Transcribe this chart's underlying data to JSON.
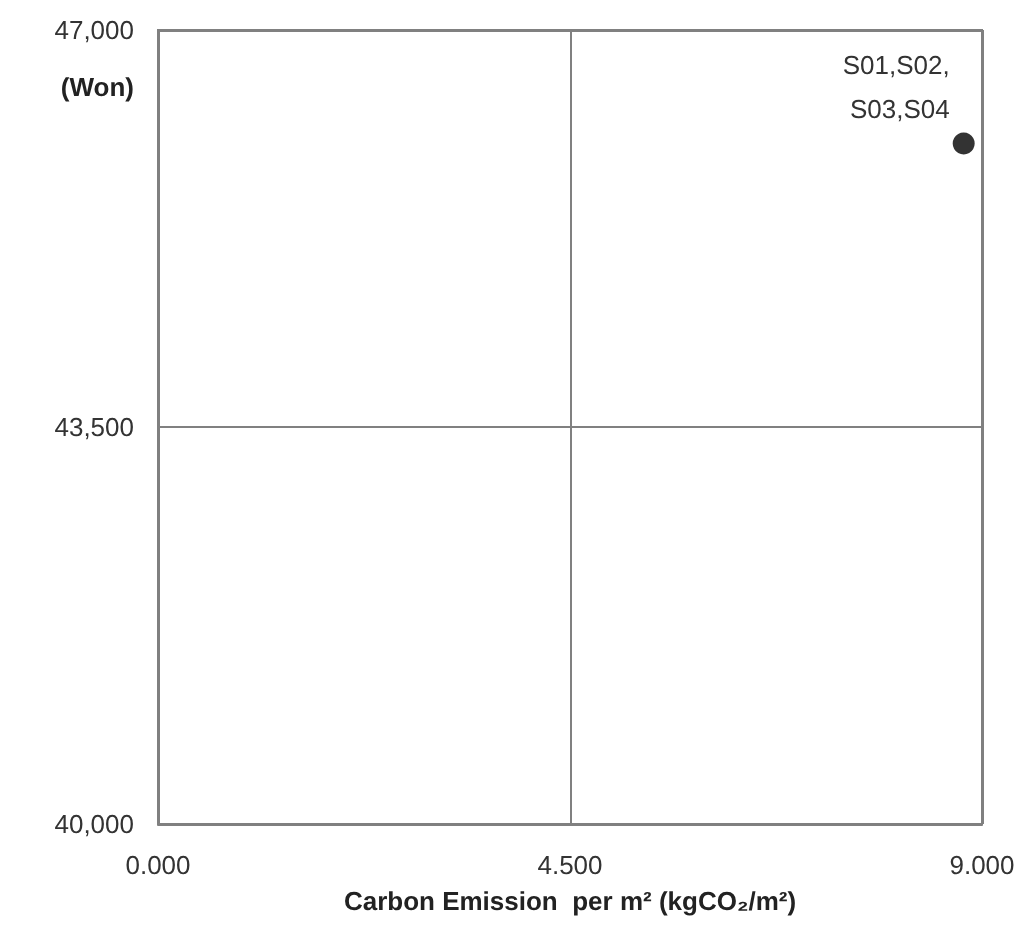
{
  "chart_data": {
    "type": "scatter",
    "xlabel": "Carbon Emission  per m² (kgCO₂/m²)",
    "ylabel": "(Won)",
    "x": [
      8.8
    ],
    "series": [
      {
        "color": "#000000",
        "values": [
          46000
        ]
      }
    ],
    "xlim": [
      0,
      9
    ],
    "xticks": [
      {
        "value": 0,
        "label": "0.000"
      },
      {
        "value": 4.5,
        "label": "4.500"
      },
      {
        "value": 9,
        "label": "9.000"
      }
    ],
    "ylim": [
      40000,
      47000
    ],
    "yticks": [
      {
        "value": 40000,
        "label": "40,000"
      },
      {
        "value": 43500,
        "label": "43,500"
      },
      {
        "value": 47000,
        "label": "47,000"
      }
    ],
    "annotations": [
      {
        "text": "S01,S02,\nS03,S04",
        "x": 8.8,
        "y": 46000
      }
    ],
    "grid": true,
    "marker": "circle"
  }
}
